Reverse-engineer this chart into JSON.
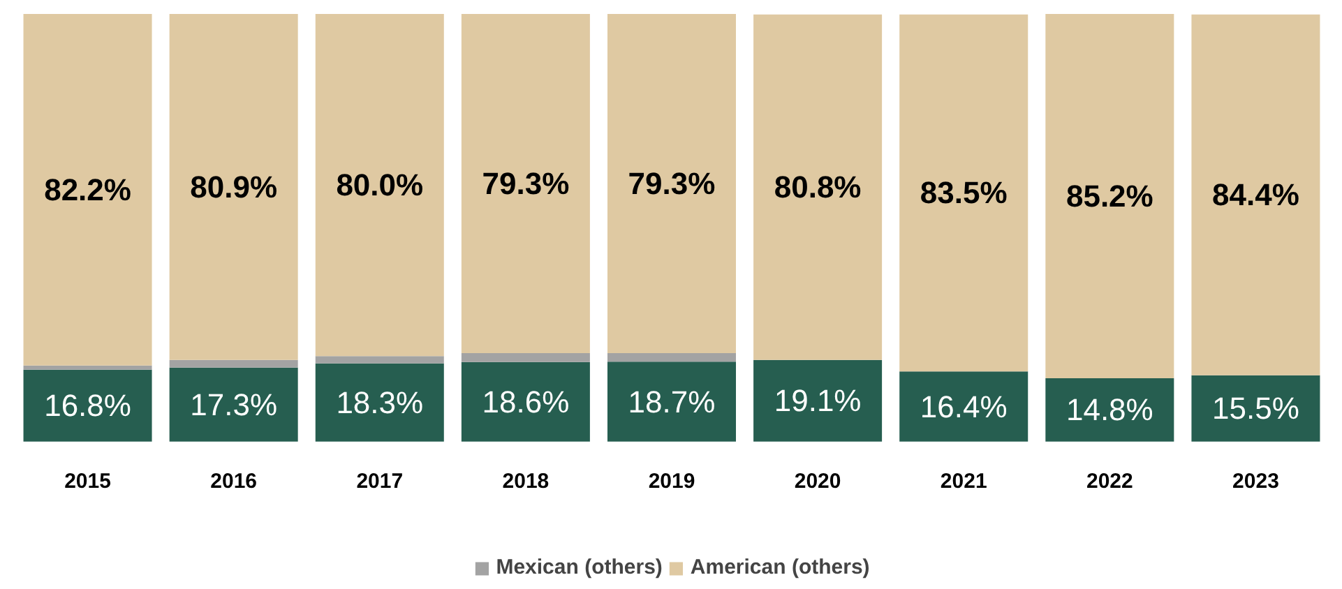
{
  "chart_data": {
    "type": "bar",
    "stacked": true,
    "categories": [
      "2015",
      "2016",
      "2017",
      "2018",
      "2019",
      "2020",
      "2021",
      "2022",
      "2023"
    ],
    "series": [
      {
        "color": "#265e50",
        "values": [
          16.8,
          17.3,
          18.3,
          18.6,
          18.7,
          19.1,
          16.4,
          14.8,
          15.5
        ],
        "value_labels": [
          "16.8%",
          "17.3%",
          "18.3%",
          "18.6%",
          "18.7%",
          "19.1%",
          "16.4%",
          "14.8%",
          "15.5%"
        ]
      },
      {
        "name": "Mexican (others)",
        "color": "#a3a3a3",
        "values": [
          1.0,
          1.8,
          1.7,
          2.1,
          2.0,
          null,
          null,
          0.0,
          null
        ]
      },
      {
        "name": "American (others)",
        "color": "#dfc9a2",
        "values": [
          82.2,
          80.9,
          80.0,
          79.3,
          79.3,
          80.8,
          83.5,
          85.2,
          84.4
        ],
        "value_labels": [
          "82.2%",
          "80.9%",
          "80.0%",
          "79.3%",
          "79.3%",
          "80.8%",
          "83.5%",
          "85.2%",
          "84.4%"
        ]
      }
    ],
    "legend": "bottom"
  }
}
